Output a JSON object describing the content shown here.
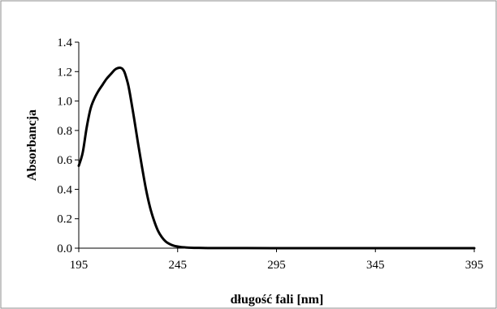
{
  "chart_data": {
    "type": "line",
    "title": "",
    "xlabel": "długość fali [nm]",
    "ylabel": "Absorbancja",
    "xlim": [
      195,
      395
    ],
    "ylim": [
      0.0,
      1.4
    ],
    "x_ticks": [
      "195",
      "245",
      "295",
      "345",
      "395"
    ],
    "y_ticks": [
      "0.0",
      "0.2",
      "0.4",
      "0.6",
      "0.8",
      "1.0",
      "1.2",
      "1.4"
    ],
    "grid": false,
    "legend": "none",
    "line_color": "#000000",
    "series": [
      {
        "x": [
          195,
          197,
          199,
          201,
          203,
          205,
          207,
          209,
          211,
          213,
          214,
          215,
          216,
          217,
          218,
          219,
          220,
          221,
          223,
          225,
          227,
          229,
          231,
          233,
          235,
          237,
          239,
          241,
          243,
          245,
          247,
          249,
          252,
          255,
          260,
          270,
          280,
          300,
          320,
          340,
          360,
          380,
          395
        ],
        "y": [
          0.56,
          0.65,
          0.82,
          0.95,
          1.02,
          1.07,
          1.11,
          1.15,
          1.18,
          1.21,
          1.22,
          1.225,
          1.226,
          1.22,
          1.2,
          1.16,
          1.11,
          1.04,
          0.88,
          0.71,
          0.55,
          0.4,
          0.28,
          0.19,
          0.12,
          0.075,
          0.045,
          0.028,
          0.017,
          0.011,
          0.007,
          0.005,
          0.003,
          0.002,
          0.001,
          0.0005,
          0.0004,
          0.0003,
          0.0002,
          0.0001,
          0.0,
          0.0,
          0.0
        ]
      }
    ]
  }
}
